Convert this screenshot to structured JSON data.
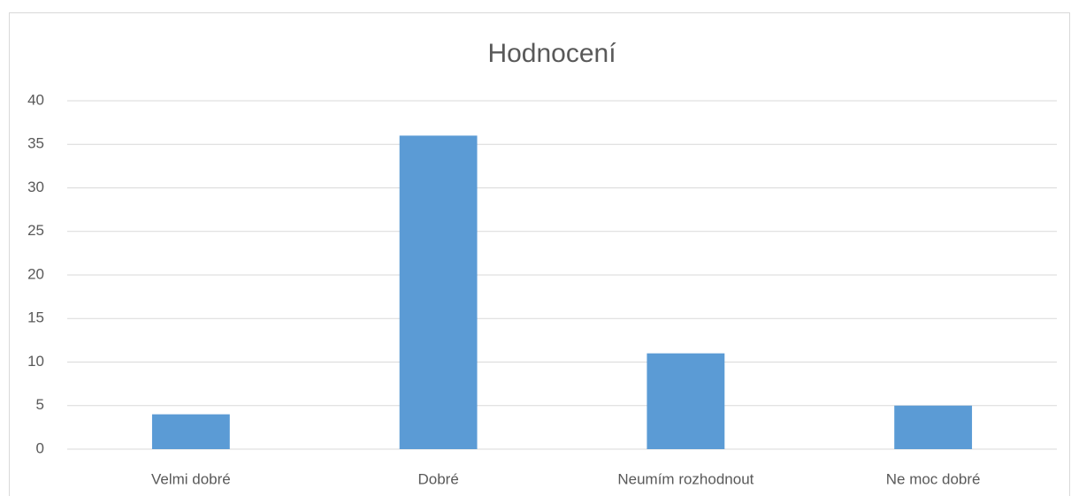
{
  "chart_data": {
    "type": "bar",
    "title": "Hodnocení",
    "categories": [
      "Velmi dobré",
      "Dobré",
      "Neumím rozhodnout",
      "Ne moc dobré"
    ],
    "values": [
      4,
      36,
      11,
      5
    ],
    "color": "#5b9bd5",
    "ylim": [
      0,
      40
    ],
    "yticks": [
      0,
      5,
      10,
      15,
      20,
      25,
      30,
      35,
      40
    ],
    "grid": true
  }
}
